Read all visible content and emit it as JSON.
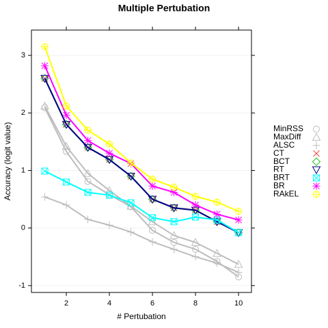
{
  "chart_data": {
    "type": "line",
    "title": "Multiple Pertubation",
    "x_label": "# Pertubation",
    "y_label": "Accuracy (logit value)",
    "x": [
      1,
      2,
      3,
      4,
      5,
      6,
      7,
      8,
      9,
      10
    ],
    "xlim": [
      0.38,
      10.6
    ],
    "xticks": [
      2,
      4,
      6,
      8,
      10
    ],
    "ylim": [
      -1.12,
      3.44
    ],
    "yticks": [
      -1,
      0,
      1,
      2,
      3
    ],
    "grid": true,
    "legend": "right",
    "series": [
      {
        "name": "MinRSS",
        "color": "#bdbdbd",
        "marker": "circle",
        "values": [
          2.09,
          1.33,
          0.81,
          0.58,
          0.37,
          -0.04,
          -0.25,
          -0.37,
          -0.58,
          -0.85
        ]
      },
      {
        "name": "MaxDiff",
        "color": "#bdbdbd",
        "marker": "triangle",
        "values": [
          2.12,
          1.42,
          0.95,
          0.65,
          0.38,
          0.11,
          -0.13,
          -0.25,
          -0.44,
          -0.63
        ]
      },
      {
        "name": "ALSC",
        "color": "#bdbdbd",
        "marker": "plus",
        "values": [
          0.54,
          0.4,
          0.15,
          0.05,
          -0.07,
          -0.24,
          -0.37,
          -0.5,
          -0.61,
          -0.77
        ]
      },
      {
        "name": "CT",
        "color": "#ff3030",
        "marker": "cross",
        "values": [
          2.6,
          1.8,
          1.4,
          1.19,
          0.9,
          0.5,
          0.35,
          0.31,
          0.11,
          -0.08
        ]
      },
      {
        "name": "BCT",
        "color": "#20c020",
        "marker": "diamond",
        "values": [
          2.6,
          1.8,
          1.4,
          1.19,
          0.9,
          0.5,
          0.35,
          0.31,
          0.11,
          -0.08
        ]
      },
      {
        "name": "RT",
        "color": "#00008b",
        "marker": "tridown",
        "values": [
          2.6,
          1.8,
          1.4,
          1.19,
          0.9,
          0.5,
          0.35,
          0.31,
          0.11,
          -0.08
        ]
      },
      {
        "name": "BRT",
        "color": "#00ffff",
        "marker": "boxx",
        "values": [
          0.99,
          0.8,
          0.62,
          0.57,
          0.44,
          0.18,
          0.11,
          0.19,
          0.14,
          -0.08
        ]
      },
      {
        "name": "BR",
        "color": "#ff00ff",
        "marker": "asterisk",
        "values": [
          2.82,
          1.96,
          1.52,
          1.3,
          1.12,
          0.73,
          0.62,
          0.4,
          0.24,
          0.14
        ]
      },
      {
        "name": "RAkEL",
        "color": "#ffff00",
        "marker": "circplus",
        "values": [
          3.15,
          2.12,
          1.7,
          1.46,
          1.13,
          0.85,
          0.71,
          0.55,
          0.45,
          0.29
        ]
      }
    ]
  }
}
